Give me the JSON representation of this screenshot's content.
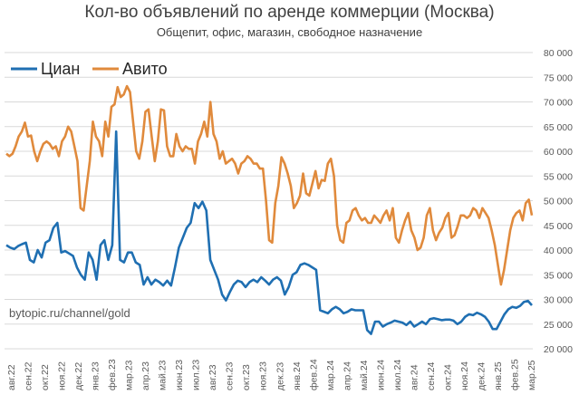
{
  "title": "Кол-во объявлений по аренде коммерции (Москва)",
  "subtitle": "Общепит, офис, магазин, свободное назначение",
  "watermark": "bytopic.ru/channel/gold",
  "colors": {
    "cian": "#1f6fb2",
    "avito": "#e08a3c",
    "grid": "#d9d9d9",
    "text": "#595959"
  },
  "chart_data": {
    "type": "line",
    "title": "Кол-во объявлений по аренде коммерции (Москва)",
    "subtitle": "Общепит, офис, магазин, свободное назначение",
    "ylim": [
      20000,
      80000
    ],
    "yticks": [
      20000,
      25000,
      30000,
      35000,
      40000,
      45000,
      50000,
      55000,
      60000,
      65000,
      70000,
      75000,
      80000
    ],
    "ytick_labels": [
      "20 000",
      "25 000",
      "30 000",
      "35 000",
      "40 000",
      "45 000",
      "50 000",
      "55 000",
      "60 000",
      "65 000",
      "70 000",
      "75 000",
      "80 000"
    ],
    "x_labels": [
      "авг.22",
      "сен.22",
      "окт.22",
      "ноя.22",
      "дек.22",
      "янв.23",
      "фев.23",
      "мар.23",
      "апр.23",
      "май.23",
      "июн.23",
      "июл.23",
      "авг.23",
      "сен.23",
      "окт.23",
      "ноя.23",
      "дек.23",
      "янв.24",
      "фев.24",
      "мар.24",
      "апр.24",
      "май.24",
      "июн.24",
      "июл.24",
      "авг.24",
      "сен.24",
      "окт.24",
      "ноя.24",
      "дек.24",
      "янв.25",
      "фев.25",
      "мар.25"
    ],
    "grid": true,
    "legend_position": "top-left",
    "series": [
      {
        "name": "Циан",
        "color": "#1f6fb2",
        "values": [
          41000,
          40500,
          40200,
          40800,
          41200,
          41500,
          38000,
          37500,
          40000,
          38500,
          41500,
          42000,
          44500,
          45500,
          39500,
          39800,
          39300,
          38800,
          36500,
          35000,
          34000,
          39500,
          38000,
          34000,
          41000,
          42000,
          38000,
          41000,
          64000,
          38000,
          37500,
          39500,
          39500,
          37500,
          37000,
          33000,
          34500,
          33000,
          34000,
          33500,
          32800,
          33800,
          32800,
          36500,
          40500,
          42500,
          44500,
          45500,
          49500,
          48500,
          49800,
          48000,
          38000,
          36000,
          34000,
          31000,
          29800,
          31500,
          33000,
          33800,
          33500,
          32500,
          33500,
          34000,
          33500,
          34500,
          33800,
          33000,
          34000,
          34500,
          33800,
          31000,
          32500,
          35000,
          35500,
          37000,
          37300,
          37000,
          36500,
          36000,
          27800,
          27500,
          27200,
          28000,
          28500,
          28000,
          27200,
          27500,
          28000,
          27800,
          27800,
          27800,
          23800,
          23000,
          25500,
          25500,
          24500,
          25000,
          25300,
          25700,
          25500,
          25300,
          24800,
          25500,
          24500,
          25000,
          25500,
          25000,
          26000,
          26200,
          26000,
          25800,
          25900,
          25900,
          25700,
          25000,
          25500,
          26500,
          27000,
          26800,
          27300,
          27000,
          26500,
          25500,
          24000,
          24000,
          25500,
          27000,
          28000,
          28500,
          28300,
          28700,
          29500,
          29700,
          28800
        ]
      },
      {
        "name": "Авито",
        "color": "#e08a3c",
        "values": [
          59500,
          59000,
          59500,
          61000,
          63000,
          64000,
          65800,
          63000,
          63200,
          60000,
          58000,
          60000,
          61500,
          62000,
          61500,
          60500,
          61000,
          59000,
          62000,
          63000,
          65000,
          64000,
          61000,
          58000,
          48500,
          48000,
          53000,
          58000,
          66000,
          63000,
          62000,
          59000,
          66000,
          63000,
          69000,
          69500,
          73000,
          71000,
          71500,
          73200,
          72000,
          66000,
          60000,
          58500,
          62000,
          68000,
          68500,
          63000,
          58000,
          62000,
          68500,
          68300,
          61000,
          59000,
          59000,
          63500,
          61000,
          60000,
          61000,
          60500,
          60500,
          57500,
          62000,
          63500,
          66000,
          63000,
          70000,
          63500,
          62000,
          58500,
          60000,
          57500,
          58000,
          58500,
          57500,
          55500,
          57500,
          58000,
          59000,
          58500,
          57500,
          57500,
          56500,
          56500,
          50000,
          42000,
          41500,
          49500,
          53000,
          58800,
          57500,
          55500,
          53000,
          48500,
          49500,
          51000,
          55500,
          51500,
          51000,
          53500,
          56000,
          52500,
          54200,
          54000,
          57500,
          58500,
          55000,
          45000,
          42000,
          41500,
          45500,
          46000,
          48000,
          48500,
          47000,
          46000,
          46500,
          45500,
          45500,
          47000,
          46300,
          45500,
          47000,
          48000,
          46000,
          48500,
          42500,
          41500,
          44000,
          46000,
          47500,
          44000,
          42500,
          40000,
          40500,
          42500,
          47000,
          48500,
          44000,
          42000,
          43500,
          44500,
          46500,
          47500,
          42500,
          43000,
          44800,
          47000,
          47000,
          46500,
          47000,
          48500,
          48000,
          46500,
          48500,
          47500,
          46500,
          44000,
          41000,
          37000,
          33000,
          36000,
          40000,
          44000,
          46500,
          47500,
          48000,
          46000,
          49500,
          50200,
          47000
        ]
      }
    ]
  }
}
